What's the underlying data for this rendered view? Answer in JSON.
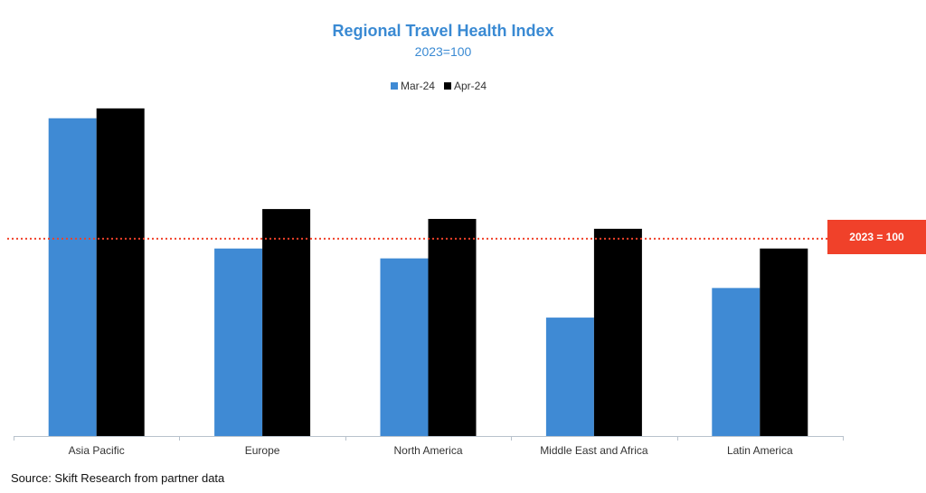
{
  "chart_data": {
    "type": "bar",
    "title": "Regional Travel Health Index",
    "subtitle": "2023=100",
    "categories": [
      "Asia Pacific",
      "Europe",
      "North America",
      "Middle East and Africa",
      "Latin America"
    ],
    "series": [
      {
        "name": "Mar-24",
        "color": "#3f8ad4",
        "values": [
          161,
          95,
          90,
          60,
          75
        ]
      },
      {
        "name": "Apr-24",
        "color": "#000000",
        "values": [
          166,
          115,
          110,
          105,
          95
        ]
      }
    ],
    "reference_line": {
      "value": 100,
      "label": "2023 = 100",
      "color": "#f0412a"
    },
    "ylim": [
      0,
      176
    ],
    "grid": false,
    "legend_position": "top-center",
    "source": "Source: Skift Research from partner data"
  }
}
